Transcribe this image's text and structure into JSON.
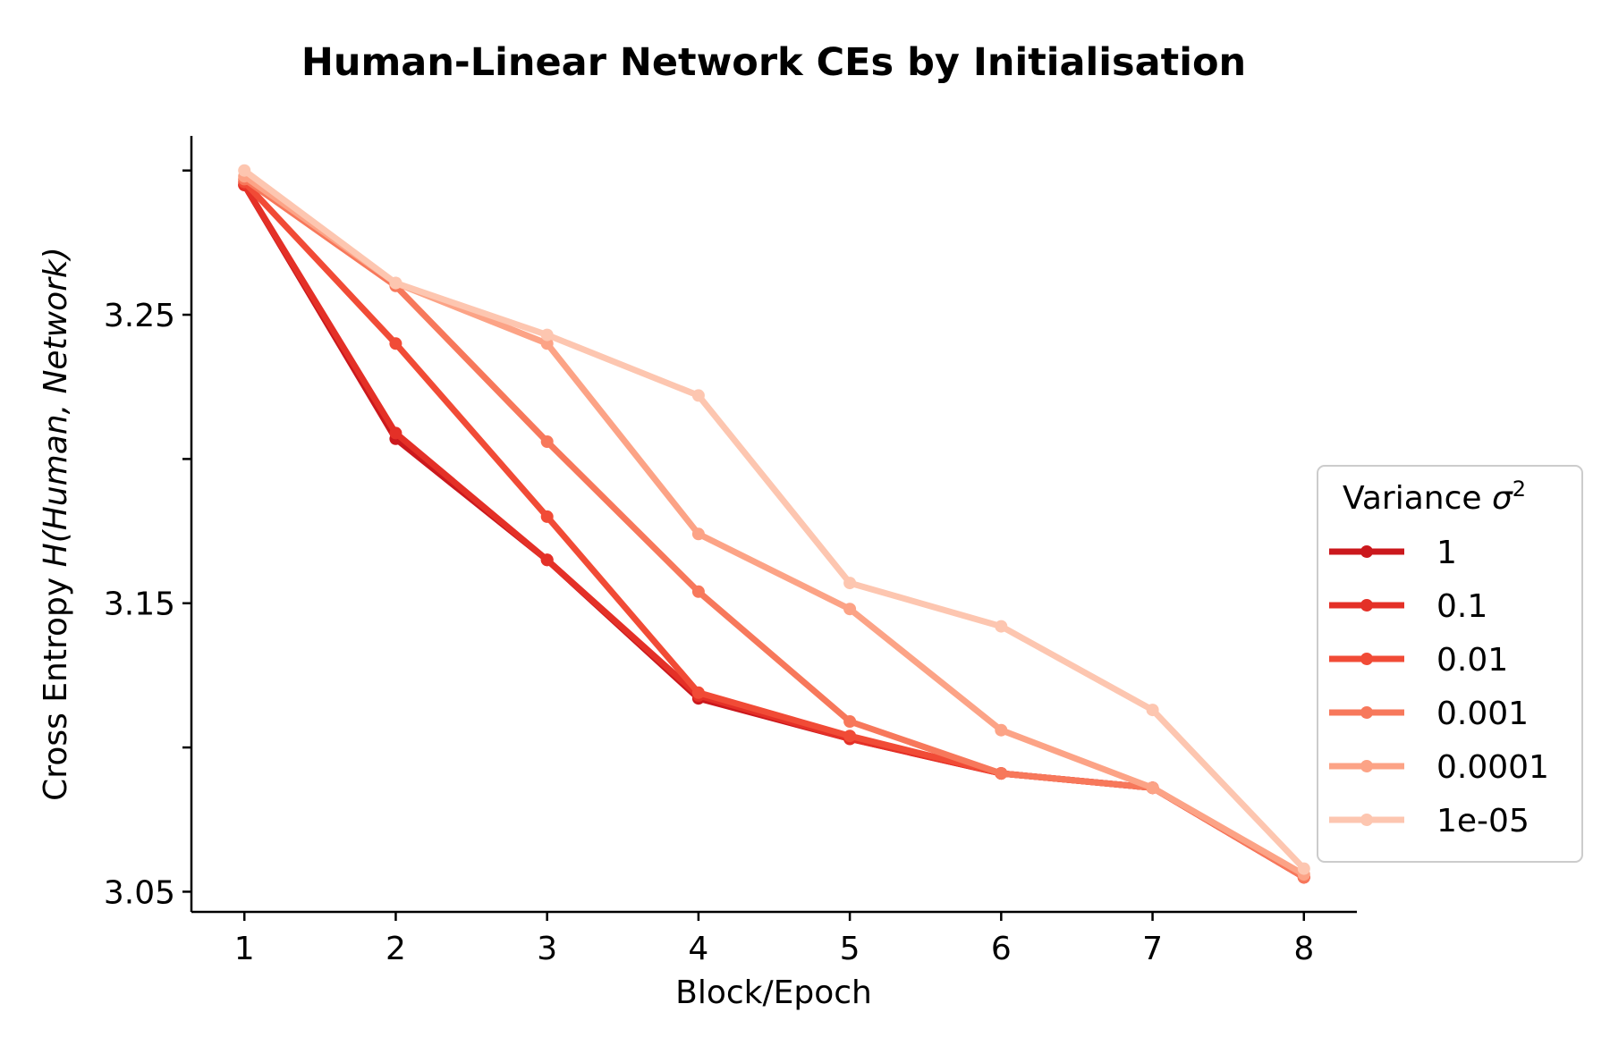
{
  "chart_data": {
    "type": "line",
    "title": "Human-Linear Network CEs by Initialisation",
    "xlabel": "Block/Epoch",
    "ylabel_prefix": "Cross Entropy ",
    "ylabel_math": "H(Human, Network)",
    "x": [
      1,
      2,
      3,
      4,
      5,
      6,
      7,
      8
    ],
    "xticks": [
      "1",
      "2",
      "3",
      "4",
      "5",
      "6",
      "7",
      "8"
    ],
    "yticks_labeled": [
      "3.25",
      "3.15",
      "3.05"
    ],
    "yticks_labeled_values": [
      3.25,
      3.15,
      3.05
    ],
    "yticks_minor_values": [
      3.3,
      3.2,
      3.1
    ],
    "ylim": [
      3.043,
      3.312
    ],
    "xlim": [
      0.65,
      8.35
    ],
    "grid": false,
    "legend": {
      "title_prefix": "Variance ",
      "title_symbol": "σ",
      "title_superscript": "2",
      "position": "right"
    },
    "series": [
      {
        "name": "1",
        "color": "#cb181d",
        "values": [
          3.295,
          3.207,
          3.165,
          3.117,
          3.103,
          3.091,
          3.086,
          3.055
        ]
      },
      {
        "name": "0.1",
        "color": "#e43027",
        "values": [
          3.295,
          3.209,
          3.165,
          3.118,
          3.103,
          3.091,
          3.086,
          3.055
        ]
      },
      {
        "name": "0.01",
        "color": "#f14b36",
        "values": [
          3.296,
          3.24,
          3.18,
          3.119,
          3.104,
          3.091,
          3.086,
          3.055
        ]
      },
      {
        "name": "0.001",
        "color": "#f7785b",
        "values": [
          3.297,
          3.26,
          3.206,
          3.154,
          3.109,
          3.091,
          3.086,
          3.055
        ]
      },
      {
        "name": "0.0001",
        "color": "#fca386",
        "values": [
          3.298,
          3.261,
          3.24,
          3.174,
          3.148,
          3.106,
          3.086,
          3.056
        ]
      },
      {
        "name": "1e-05",
        "color": "#fdc6b0",
        "values": [
          3.3,
          3.261,
          3.243,
          3.222,
          3.157,
          3.142,
          3.113,
          3.058
        ]
      }
    ]
  }
}
